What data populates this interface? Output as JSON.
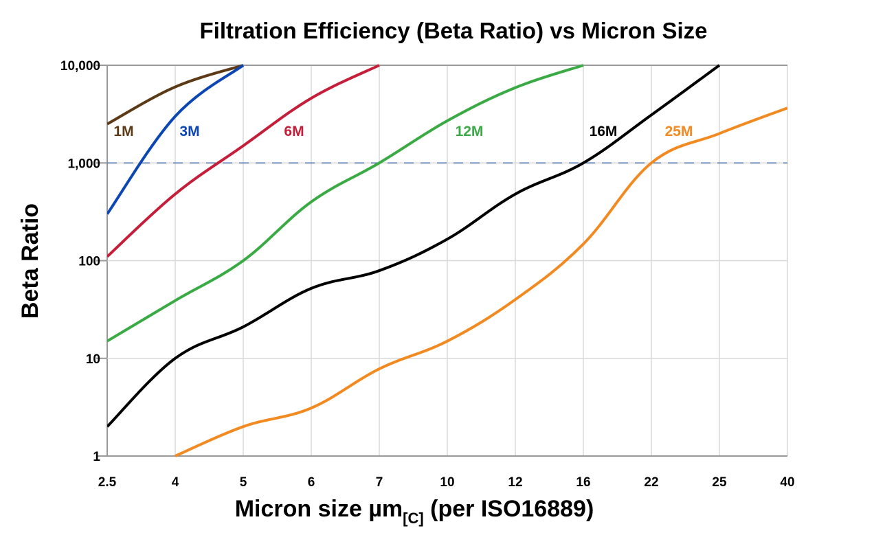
{
  "chart_data": {
    "type": "line",
    "title": "Filtration Efficiency (Beta Ratio) vs Micron Size",
    "xlabel_main": "Micron size µm",
    "xlabel_sub": "[C]",
    "xlabel_tail": " (per ISO16889)",
    "ylabel": "Beta Ratio",
    "y_scale": "log",
    "ylim": [
      1,
      10000
    ],
    "y_ticks": [
      1,
      10,
      100,
      1000,
      10000
    ],
    "y_tick_labels": [
      "1",
      "10",
      "100",
      "1,000",
      "10,000"
    ],
    "categories": [
      "2.5",
      "4",
      "5",
      "6",
      "7",
      "10",
      "12",
      "16",
      "22",
      "25",
      "40"
    ],
    "grid": true,
    "reference_line": {
      "y": 1000,
      "style": "dashed",
      "color": "#4a6fa5"
    },
    "series": [
      {
        "name": "1M",
        "color": "#5c3a16",
        "values": [
          2500,
          6000,
          10000,
          null,
          null,
          null,
          null,
          null,
          null,
          null,
          null
        ]
      },
      {
        "name": "3M",
        "color": "#0b46b4",
        "values": [
          300,
          3000,
          10000,
          null,
          null,
          null,
          null,
          null,
          null,
          null,
          null
        ]
      },
      {
        "name": "6M",
        "color": "#c41e3a",
        "values": [
          110,
          480,
          1500,
          4600,
          10000,
          null,
          null,
          null,
          null,
          null,
          null
        ]
      },
      {
        "name": "12M",
        "color": "#3aaa45",
        "values": [
          15,
          39,
          100,
          400,
          1000,
          2700,
          5900,
          10000,
          null,
          null,
          null
        ]
      },
      {
        "name": "16M",
        "color": "#000000",
        "values": [
          2,
          10,
          21,
          52,
          79,
          166,
          480,
          1000,
          3100,
          10000,
          null
        ]
      },
      {
        "name": "25M",
        "color": "#f28a22",
        "values": [
          null,
          1,
          2,
          3.1,
          7.8,
          15,
          40,
          148,
          1000,
          2000,
          3650
        ]
      }
    ]
  }
}
